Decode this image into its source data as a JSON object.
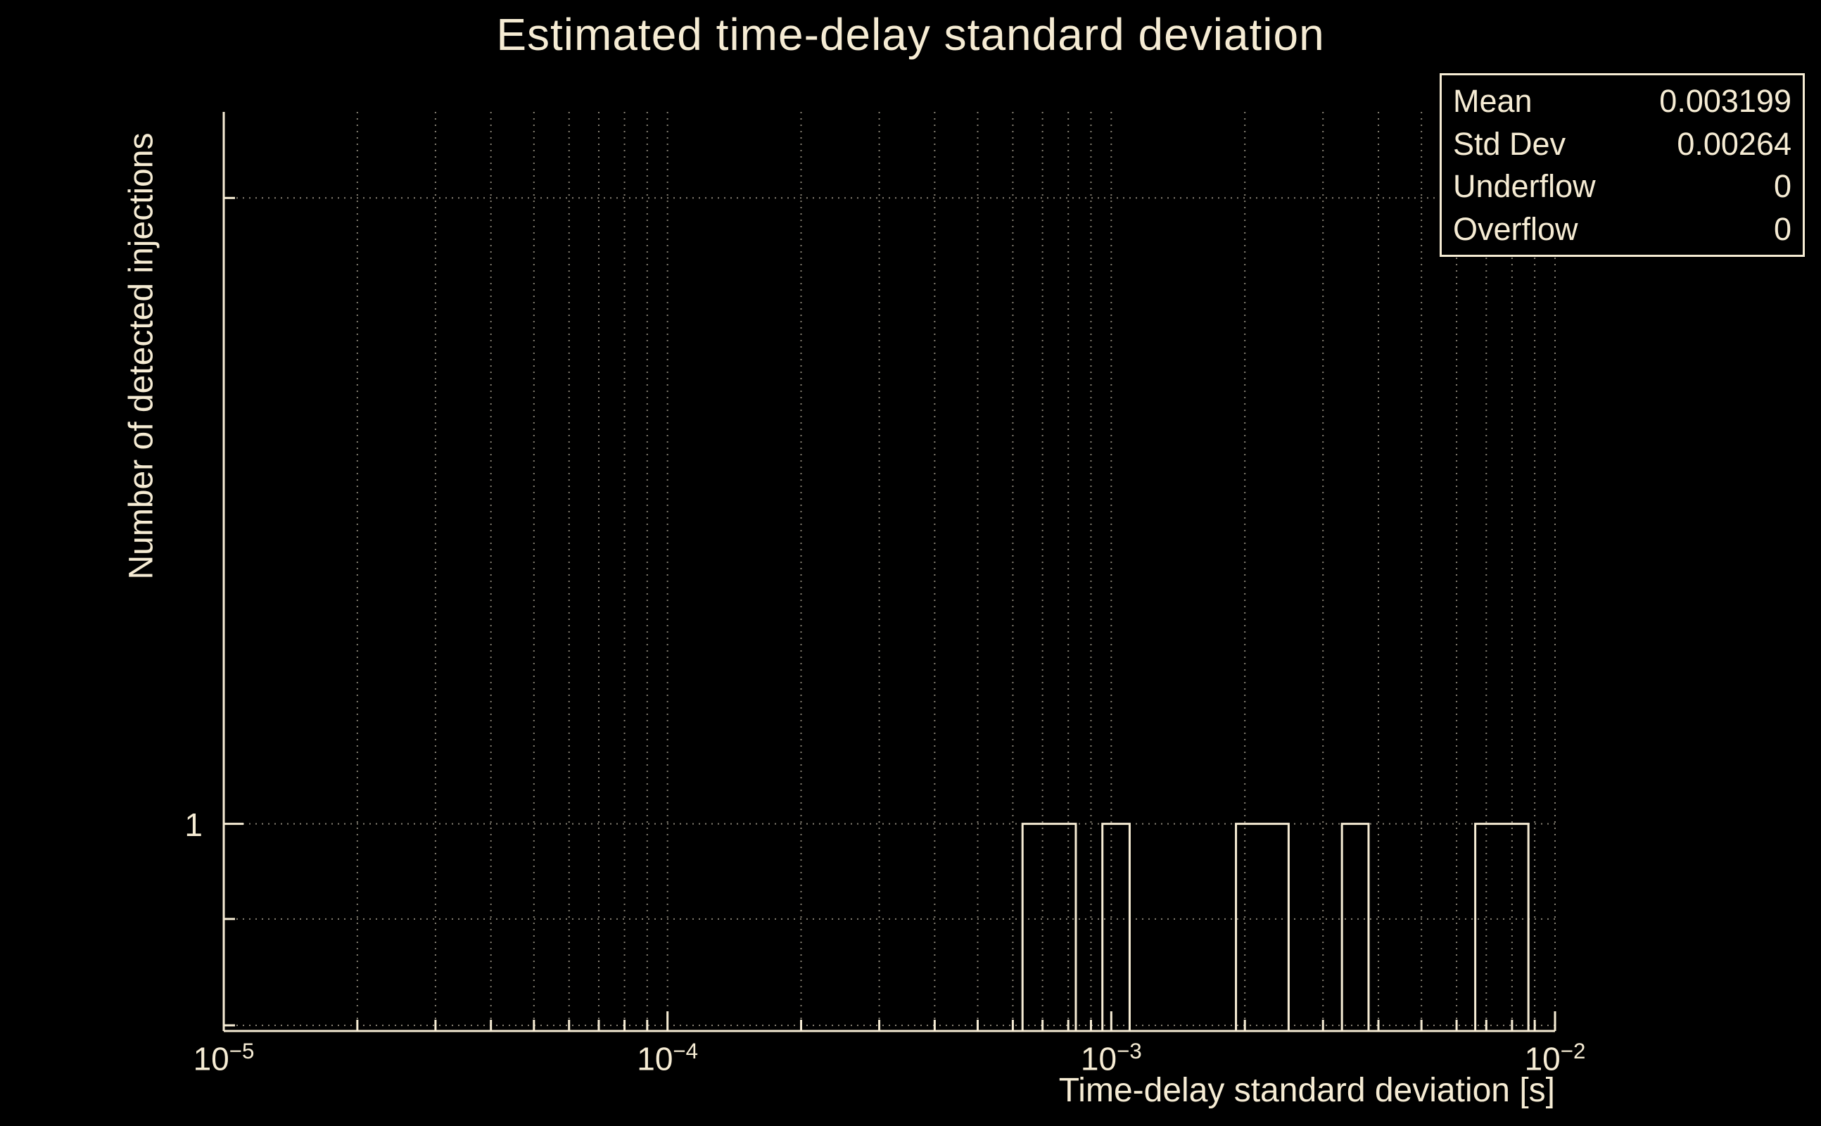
{
  "chart": {
    "title": "Estimated time-delay standard deviation",
    "xlabel": "Time-delay standard deviation [s]",
    "ylabel": "Number of detected injections",
    "colors": {
      "background": "#000000",
      "foreground": "#f6ecd4",
      "grid": "#f6ecd4"
    }
  },
  "stats": {
    "rows": [
      {
        "label": "Mean",
        "value": "0.003199"
      },
      {
        "label": "Std Dev",
        "value": "0.00264"
      },
      {
        "label": "Underflow",
        "value": "0"
      },
      {
        "label": "Overflow",
        "value": "0"
      }
    ]
  },
  "chart_data": {
    "type": "bar",
    "title": "Estimated time-delay standard deviation",
    "xlabel": "Time-delay standard deviation [s]",
    "ylabel": "Number of detected injections",
    "x_scale": "log",
    "y_scale": "log",
    "xlim": [
      1e-05,
      0.01
    ],
    "ylim": [
      0.795,
      2.2
    ],
    "x_major_tick_exponents": [
      -5,
      -4,
      -3,
      -2
    ],
    "x_tick_labels": [
      "10^-5",
      "10^-4",
      "10^-3",
      "10^-2"
    ],
    "y_labeled_ticks": [
      1
    ],
    "h_gridlines": [
      2,
      1,
      0.9,
      0.8
    ],
    "grid": true,
    "legend_position": "none",
    "bars": [
      {
        "x1": 0.000631,
        "x2": 0.000832,
        "y": 1
      },
      {
        "x1": 0.000955,
        "x2": 0.0011,
        "y": 1
      },
      {
        "x1": 0.00191,
        "x2": 0.00251,
        "y": 1
      },
      {
        "x1": 0.00331,
        "x2": 0.0038,
        "y": 1
      },
      {
        "x1": 0.00661,
        "x2": 0.00871,
        "y": 1
      }
    ],
    "stats": {
      "mean": 0.003199,
      "std_dev": 0.00264,
      "underflow": 0,
      "overflow": 0
    }
  }
}
